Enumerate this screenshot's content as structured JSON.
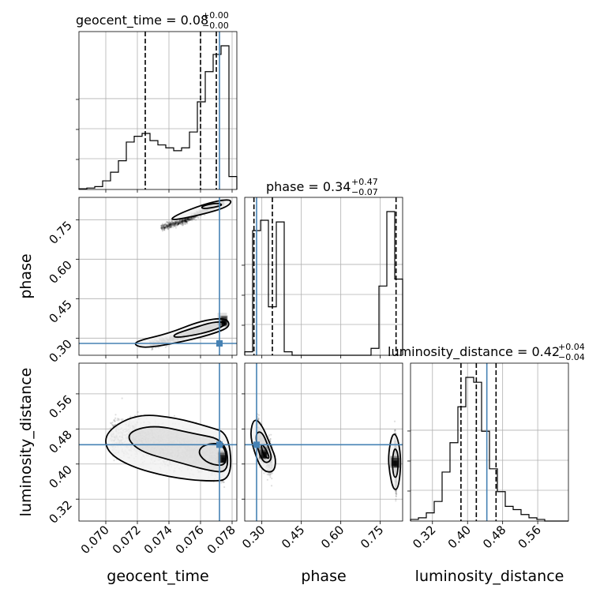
{
  "parameters": [
    "geocent_time",
    "phase",
    "luminosity_distance"
  ],
  "titles": [
    {
      "param": "geocent_time",
      "median": "0.08",
      "plus": "+0.00",
      "minus": "−0.00"
    },
    {
      "param": "phase",
      "median": "0.34",
      "plus": "+0.47",
      "minus": "−0.07"
    },
    {
      "param": "luminosity_distance",
      "median": "0.42",
      "plus": "+0.04",
      "minus": "−0.04"
    }
  ],
  "truths": {
    "geocent_time": 0.0772,
    "phase": 0.28,
    "luminosity_distance": 0.444
  },
  "colors": {
    "truth": "#4682b4",
    "hist": "#000000",
    "grid": "#b0b0b0"
  },
  "chart_data": {
    "type": "corner",
    "xlabels": [
      "geocent_time",
      "phase",
      "luminosity_distance"
    ],
    "ylabels": [
      "",
      "phase",
      "luminosity_distance"
    ],
    "ticks": {
      "geocent_time": [
        "0.070",
        "0.072",
        "0.074",
        "0.076",
        "0.078"
      ],
      "phase": [
        "0.30",
        "0.45",
        "0.60",
        "0.75"
      ],
      "luminosity_distance": [
        "0.32",
        "0.40",
        "0.48",
        "0.56"
      ]
    },
    "ranges": {
      "geocent_time": [
        0.0683,
        0.0783
      ],
      "phase": [
        0.235,
        0.835
      ],
      "luminosity_distance": [
        0.27,
        0.63
      ]
    },
    "histograms": {
      "geocent_time": {
        "edges": [
          0.0683,
          0.0688,
          0.0693,
          0.0698,
          0.0703,
          0.0708,
          0.0713,
          0.0718,
          0.0723,
          0.0728,
          0.0733,
          0.0738,
          0.0743,
          0.0748,
          0.0753,
          0.0758,
          0.0763,
          0.0768,
          0.0773,
          0.0778,
          0.0783
        ],
        "counts": [
          0.005,
          0.01,
          0.02,
          0.06,
          0.12,
          0.2,
          0.33,
          0.37,
          0.39,
          0.34,
          0.31,
          0.29,
          0.27,
          0.29,
          0.4,
          0.61,
          0.82,
          0.94,
          1.0,
          0.09
        ],
        "quantiles": [
          0.0725,
          0.076,
          0.077
        ]
      },
      "phase": {
        "edges": [
          0.235,
          0.265,
          0.295,
          0.325,
          0.355,
          0.385,
          0.415,
          0.445,
          0.475,
          0.505,
          0.535,
          0.565,
          0.595,
          0.625,
          0.655,
          0.685,
          0.715,
          0.745,
          0.775,
          0.805,
          0.835
        ],
        "counts": [
          0.02,
          0.72,
          0.78,
          0.28,
          0.77,
          0.02,
          0.0,
          0.0,
          0.0,
          0.0,
          0.0,
          0.0,
          0.0,
          0.0,
          0.0,
          0.0,
          0.04,
          0.4,
          0.83,
          0.44
        ],
        "quantiles": [
          0.27,
          0.34,
          0.81
        ]
      },
      "luminosity_distance": {
        "edges": [
          0.27,
          0.288,
          0.306,
          0.324,
          0.342,
          0.36,
          0.378,
          0.396,
          0.414,
          0.432,
          0.45,
          0.468,
          0.486,
          0.504,
          0.522,
          0.54,
          0.558,
          0.576,
          0.594,
          0.612,
          0.63
        ],
        "counts": [
          0.01,
          0.02,
          0.05,
          0.12,
          0.3,
          0.48,
          0.7,
          0.88,
          0.85,
          0.55,
          0.32,
          0.18,
          0.09,
          0.07,
          0.04,
          0.02,
          0.01,
          0.0,
          0.0,
          0.0
        ],
        "quantiles": [
          0.385,
          0.42,
          0.465
        ]
      }
    },
    "clusters": [
      {
        "x": "geocent_time",
        "y": "phase",
        "points": [
          [
            0.0728,
            0.275
          ],
          [
            0.0745,
            0.3
          ],
          [
            0.076,
            0.33
          ],
          [
            0.0772,
            0.355
          ]
        ],
        "spread": 0.012,
        "n": 1500
      },
      {
        "x": "geocent_time",
        "y": "phase",
        "points": [
          [
            0.0735,
            0.72
          ],
          [
            0.075,
            0.745
          ],
          [
            0.0762,
            0.785
          ],
          [
            0.0775,
            0.815
          ]
        ],
        "spread": 0.01,
        "n": 1100
      },
      {
        "x": "geocent_time",
        "y": "luminosity_distance",
        "points": [
          [
            0.0703,
            0.46
          ],
          [
            0.072,
            0.46
          ],
          [
            0.0735,
            0.44
          ],
          [
            0.075,
            0.43
          ],
          [
            0.0765,
            0.42
          ],
          [
            0.0775,
            0.4
          ]
        ],
        "spread": 0.035,
        "n": 2500
      },
      {
        "x": "phase",
        "y": "luminosity_distance",
        "points": [
          [
            0.28,
            0.47
          ],
          [
            0.3,
            0.44
          ],
          [
            0.32,
            0.42
          ],
          [
            0.34,
            0.41
          ]
        ],
        "spread": 0.03,
        "n": 1400
      },
      {
        "x": "phase",
        "y": "luminosity_distance",
        "points": [
          [
            0.805,
            0.42
          ],
          [
            0.81,
            0.4
          ],
          [
            0.81,
            0.38
          ]
        ],
        "spread": 0.04,
        "n": 1300
      }
    ],
    "contours": [
      {
        "x": "geocent_time",
        "y": "phase",
        "rings": [
          [
            [
              0.0718,
              0.273
            ],
            [
              0.0726,
              0.262
            ],
            [
              0.075,
              0.288
            ],
            [
              0.077,
              0.32
            ],
            [
              0.0779,
              0.345
            ],
            [
              0.0776,
              0.378
            ],
            [
              0.076,
              0.366
            ],
            [
              0.074,
              0.318
            ],
            [
              0.072,
              0.29
            ]
          ],
          [
            [
              0.0745,
              0.3
            ],
            [
              0.0765,
              0.322
            ],
            [
              0.0778,
              0.355
            ],
            [
              0.077,
              0.365
            ],
            [
              0.0755,
              0.338
            ],
            [
              0.0742,
              0.312
            ]
          ]
        ]
      },
      {
        "x": "geocent_time",
        "y": "phase",
        "rings": [
          [
            [
              0.074,
              0.745
            ],
            [
              0.076,
              0.768
            ],
            [
              0.0778,
              0.8
            ],
            [
              0.078,
              0.83
            ],
            [
              0.0765,
              0.815
            ],
            [
              0.0745,
              0.77
            ]
          ],
          [
            [
              0.0762,
              0.79
            ],
            [
              0.0775,
              0.805
            ],
            [
              0.077,
              0.815
            ],
            [
              0.076,
              0.8
            ]
          ]
        ]
      },
      {
        "x": "geocent_time",
        "y": "luminosity_distance",
        "rings": [
          [
            [
              0.07,
              0.475
            ],
            [
              0.072,
              0.515
            ],
            [
              0.0745,
              0.505
            ],
            [
              0.0765,
              0.485
            ],
            [
              0.0778,
              0.47
            ],
            [
              0.078,
              0.365
            ],
            [
              0.0765,
              0.36
            ],
            [
              0.074,
              0.37
            ],
            [
              0.0715,
              0.395
            ],
            [
              0.07,
              0.43
            ]
          ],
          [
            [
              0.0712,
              0.47
            ],
            [
              0.073,
              0.49
            ],
            [
              0.0755,
              0.47
            ],
            [
              0.0776,
              0.455
            ],
            [
              0.0778,
              0.38
            ],
            [
              0.0765,
              0.385
            ],
            [
              0.0745,
              0.405
            ],
            [
              0.072,
              0.43
            ]
          ],
          [
            [
              0.0762,
              0.445
            ],
            [
              0.0775,
              0.448
            ],
            [
              0.0777,
              0.395
            ],
            [
              0.0765,
              0.4
            ],
            [
              0.0758,
              0.425
            ]
          ]
        ]
      },
      {
        "x": "phase",
        "y": "luminosity_distance",
        "rings": [
          [
            [
              0.255,
              0.47
            ],
            [
              0.27,
              0.505
            ],
            [
              0.3,
              0.49
            ],
            [
              0.335,
              0.44
            ],
            [
              0.355,
              0.41
            ],
            [
              0.345,
              0.38
            ],
            [
              0.3,
              0.385
            ],
            [
              0.27,
              0.43
            ]
          ],
          [
            [
              0.275,
              0.47
            ],
            [
              0.3,
              0.475
            ],
            [
              0.325,
              0.44
            ],
            [
              0.34,
              0.41
            ],
            [
              0.31,
              0.4
            ],
            [
              0.285,
              0.43
            ]
          ],
          [
            [
              0.295,
              0.45
            ],
            [
              0.32,
              0.43
            ],
            [
              0.33,
              0.41
            ],
            [
              0.305,
              0.42
            ]
          ]
        ]
      },
      {
        "x": "phase",
        "y": "luminosity_distance",
        "rings": [
          [
            [
              0.78,
              0.42
            ],
            [
              0.795,
              0.47
            ],
            [
              0.815,
              0.465
            ],
            [
              0.83,
              0.41
            ],
            [
              0.82,
              0.345
            ],
            [
              0.8,
              0.34
            ],
            [
              0.785,
              0.38
            ]
          ],
          [
            [
              0.795,
              0.41
            ],
            [
              0.805,
              0.44
            ],
            [
              0.82,
              0.42
            ],
            [
              0.815,
              0.37
            ],
            [
              0.8,
              0.37
            ]
          ]
        ]
      }
    ],
    "density_peaks": [
      {
        "x": "geocent_time",
        "y": "phase",
        "at": [
          0.0775,
          0.36
        ]
      },
      {
        "x": "geocent_time",
        "y": "luminosity_distance",
        "at": [
          0.0775,
          0.41
        ]
      },
      {
        "x": "phase",
        "y": "luminosity_distance",
        "at": [
          0.31,
          0.42
        ]
      },
      {
        "x": "phase",
        "y": "luminosity_distance",
        "at": [
          0.81,
          0.4
        ]
      }
    ],
    "grid": true
  }
}
